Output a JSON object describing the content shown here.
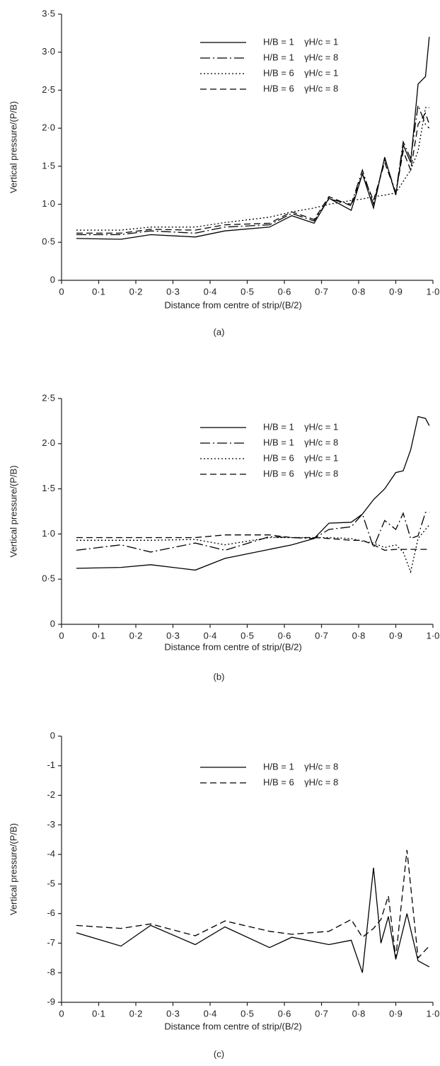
{
  "chart_data": [
    {
      "type": "line",
      "caption": "(a)",
      "x_label": "Distance from centre of strip/(B/2)",
      "y_label": "Vertical pressure/(P/B)",
      "x": [
        0.04,
        0.16,
        0.24,
        0.36,
        0.44,
        0.56,
        0.62,
        0.68,
        0.72,
        0.78,
        0.81,
        0.84,
        0.87,
        0.9,
        0.92,
        0.94,
        0.96,
        0.98,
        0.99
      ],
      "xlim": [
        0,
        1
      ],
      "ylim": [
        0,
        3.5
      ],
      "xticks": [
        0,
        {
          "value": 0.1,
          "label": "0·1"
        },
        {
          "value": 0.2,
          "label": "0·2"
        },
        {
          "value": 0.3,
          "label": "0·3"
        },
        {
          "value": 0.4,
          "label": "0·4"
        },
        {
          "value": 0.5,
          "label": "0·5"
        },
        {
          "value": 0.6,
          "label": "0·6"
        },
        {
          "value": 0.7,
          "label": "0·7"
        },
        {
          "value": 0.8,
          "label": "0·8"
        },
        {
          "value": 0.9,
          "label": "0·9"
        },
        {
          "value": 1,
          "label": "1·0"
        }
      ],
      "yticks": [
        0,
        {
          "value": 0.5,
          "label": "0·5"
        },
        {
          "value": 1,
          "label": "1·0"
        },
        {
          "value": 1.5,
          "label": "1·5"
        },
        {
          "value": 2,
          "label": "2·0"
        },
        {
          "value": 2.5,
          "label": "2·5"
        },
        {
          "value": 3,
          "label": "3·0"
        },
        {
          "value": 3.5,
          "label": "3·5"
        }
      ],
      "series": [
        {
          "name": "H/B = 1    γH/c = 1",
          "color": "#000000",
          "style": "solid",
          "values": [
            0.55,
            0.54,
            0.6,
            0.57,
            0.65,
            0.7,
            0.85,
            0.75,
            1.08,
            0.92,
            1.4,
            0.95,
            1.62,
            1.12,
            1.78,
            1.55,
            2.58,
            2.68,
            3.2
          ]
        },
        {
          "name": "H/B = 1    γH/c = 8",
          "color": "#000000",
          "style": "dashdot",
          "values": [
            0.6,
            0.6,
            0.65,
            0.62,
            0.7,
            0.73,
            0.88,
            0.78,
            1.07,
            1.0,
            1.45,
            1.0,
            1.6,
            1.15,
            1.82,
            1.6,
            2.3,
            2.05,
            2.0
          ]
        },
        {
          "name": "H/B = 6    γH/c = 1",
          "color": "#000000",
          "style": "dotted",
          "values": [
            0.66,
            0.66,
            0.7,
            0.7,
            0.76,
            0.83,
            0.9,
            0.95,
            1.0,
            1.05,
            1.07,
            1.1,
            1.12,
            1.15,
            1.3,
            1.45,
            1.7,
            2.27,
            2.27
          ]
        },
        {
          "name": "H/B = 6    γH/c = 8",
          "color": "#000000",
          "style": "dashed",
          "values": [
            0.62,
            0.62,
            0.67,
            0.66,
            0.73,
            0.75,
            0.9,
            0.8,
            1.1,
            0.98,
            1.4,
            1.05,
            1.55,
            1.15,
            1.7,
            1.45,
            2.05,
            2.2,
            2.05
          ]
        }
      ]
    },
    {
      "type": "line",
      "caption": "(b)",
      "x_label": "Distance from centre of strip/(B/2)",
      "y_label": "Vertical pressure/(P/B)",
      "x": [
        0.04,
        0.16,
        0.24,
        0.36,
        0.44,
        0.56,
        0.62,
        0.68,
        0.72,
        0.78,
        0.81,
        0.84,
        0.87,
        0.9,
        0.92,
        0.94,
        0.96,
        0.98,
        0.99
      ],
      "xlim": [
        0,
        1
      ],
      "ylim": [
        0,
        2.5
      ],
      "xticks": [
        0,
        {
          "value": 0.1,
          "label": "0·1"
        },
        {
          "value": 0.2,
          "label": "0·2"
        },
        {
          "value": 0.3,
          "label": "0·3"
        },
        {
          "value": 0.4,
          "label": "0·4"
        },
        {
          "value": 0.5,
          "label": "0·5"
        },
        {
          "value": 0.6,
          "label": "0·6"
        },
        {
          "value": 0.7,
          "label": "0·7"
        },
        {
          "value": 0.8,
          "label": "0·8"
        },
        {
          "value": 0.9,
          "label": "0·9"
        },
        {
          "value": 1,
          "label": "1·0"
        }
      ],
      "yticks": [
        0,
        {
          "value": 0.5,
          "label": "0·5"
        },
        {
          "value": 1,
          "label": "1·0"
        },
        {
          "value": 1.5,
          "label": "1·5"
        },
        {
          "value": 2,
          "label": "2·0"
        },
        {
          "value": 2.5,
          "label": "2·5"
        }
      ],
      "series": [
        {
          "name": "H/B = 1    γH/c = 1",
          "color": "#000000",
          "style": "solid",
          "values": [
            0.62,
            0.63,
            0.66,
            0.6,
            0.73,
            0.83,
            0.88,
            0.95,
            1.12,
            1.13,
            1.22,
            1.38,
            1.5,
            1.68,
            1.7,
            1.93,
            2.3,
            2.28,
            2.2
          ]
        },
        {
          "name": "H/B = 1    γH/c = 8",
          "color": "#000000",
          "style": "dashdot",
          "values": [
            0.82,
            0.88,
            0.8,
            0.9,
            0.82,
            0.97,
            0.96,
            0.95,
            1.05,
            1.08,
            1.22,
            0.85,
            1.15,
            1.05,
            1.23,
            0.95,
            0.98,
            1.24,
            1.24
          ]
        },
        {
          "name": "H/B = 6    γH/c = 1",
          "color": "#000000",
          "style": "dotted",
          "values": [
            0.93,
            0.93,
            0.93,
            0.94,
            0.88,
            0.96,
            0.96,
            0.96,
            0.96,
            0.95,
            0.92,
            0.9,
            0.85,
            0.88,
            0.8,
            0.58,
            0.95,
            1.05,
            1.1
          ]
        },
        {
          "name": "H/B = 6    γH/c = 8",
          "color": "#000000",
          "style": "dashed",
          "values": [
            0.96,
            0.96,
            0.96,
            0.96,
            0.99,
            0.99,
            0.96,
            0.96,
            0.95,
            0.93,
            0.93,
            0.88,
            0.82,
            0.83,
            0.83,
            0.83,
            0.83,
            0.83,
            0.83
          ]
        }
      ]
    },
    {
      "type": "line",
      "caption": "(c)",
      "x_label": "Distance from centre of strip/(B/2)",
      "y_label": "Vertical pressure/(P/B)",
      "x": [
        0.04,
        0.16,
        0.24,
        0.36,
        0.44,
        0.56,
        0.62,
        0.72,
        0.78,
        0.81,
        0.84,
        0.86,
        0.88,
        0.9,
        0.93,
        0.96,
        0.99
      ],
      "xlim": [
        0,
        1
      ],
      "ylim": [
        -9,
        0
      ],
      "xticks": [
        0,
        {
          "value": 0.1,
          "label": "0·1"
        },
        {
          "value": 0.2,
          "label": "0·2"
        },
        {
          "value": 0.3,
          "label": "0·3"
        },
        {
          "value": 0.4,
          "label": "0·4"
        },
        {
          "value": 0.5,
          "label": "0·5"
        },
        {
          "value": 0.6,
          "label": "0·6"
        },
        {
          "value": 0.7,
          "label": "0·7"
        },
        {
          "value": 0.8,
          "label": "0·8"
        },
        {
          "value": 0.9,
          "label": "0·9"
        },
        {
          "value": 1,
          "label": "1·0"
        }
      ],
      "yticks": [
        0,
        -1,
        -2,
        -3,
        -4,
        -5,
        -6,
        -7,
        -8,
        -9
      ],
      "series": [
        {
          "name": "H/B = 1    γH/c = 8",
          "color": "#000000",
          "style": "solid",
          "values": [
            -6.65,
            -7.1,
            -6.4,
            -7.05,
            -6.45,
            -7.15,
            -6.8,
            -7.05,
            -6.9,
            -8.0,
            -4.45,
            -7.0,
            -6.1,
            -7.55,
            -6.0,
            -7.6,
            -7.8
          ]
        },
        {
          "name": "H/B = 6    γH/c = 8",
          "color": "#000000",
          "style": "dashed",
          "values": [
            -6.4,
            -6.5,
            -6.35,
            -6.75,
            -6.25,
            -6.6,
            -6.7,
            -6.6,
            -6.2,
            -6.8,
            -6.5,
            -6.2,
            -5.4,
            -7.5,
            -3.85,
            -7.5,
            -7.1
          ]
        }
      ]
    }
  ]
}
